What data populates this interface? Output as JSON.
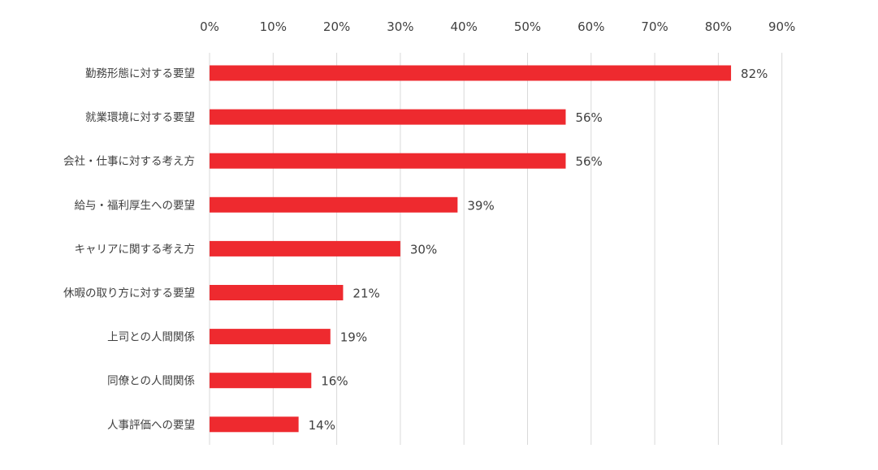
{
  "chart_data": {
    "type": "bar",
    "orientation": "horizontal",
    "categories": [
      "勤務形態に対する要望",
      "就業環境に対する要望",
      "会社・仕事に対する考え方",
      "給与・福利厚生への要望",
      "キャリアに関する考え方",
      "休暇の取り方に対する要望",
      "上司との人間関係",
      "同僚との人間関係",
      "人事評価への要望"
    ],
    "values": [
      82,
      56,
      56,
      39,
      30,
      21,
      19,
      16,
      14
    ],
    "data_labels": [
      "82%",
      "56%",
      "56%",
      "39%",
      "30%",
      "21%",
      "19%",
      "16%",
      "14%"
    ],
    "xlim": [
      0,
      90
    ],
    "x_ticks": [
      0,
      10,
      20,
      30,
      40,
      50,
      60,
      70,
      80,
      90
    ],
    "x_tick_labels": [
      "0%",
      "10%",
      "20%",
      "30%",
      "40%",
      "50%",
      "60%",
      "70%",
      "80%",
      "90%"
    ],
    "x_axis_position": "top",
    "grid": true,
    "title": "",
    "xlabel": "",
    "ylabel": "",
    "colors": {
      "bar": "#ee2a2f",
      "grid": "#d9d9d9",
      "text": "#404040"
    }
  }
}
